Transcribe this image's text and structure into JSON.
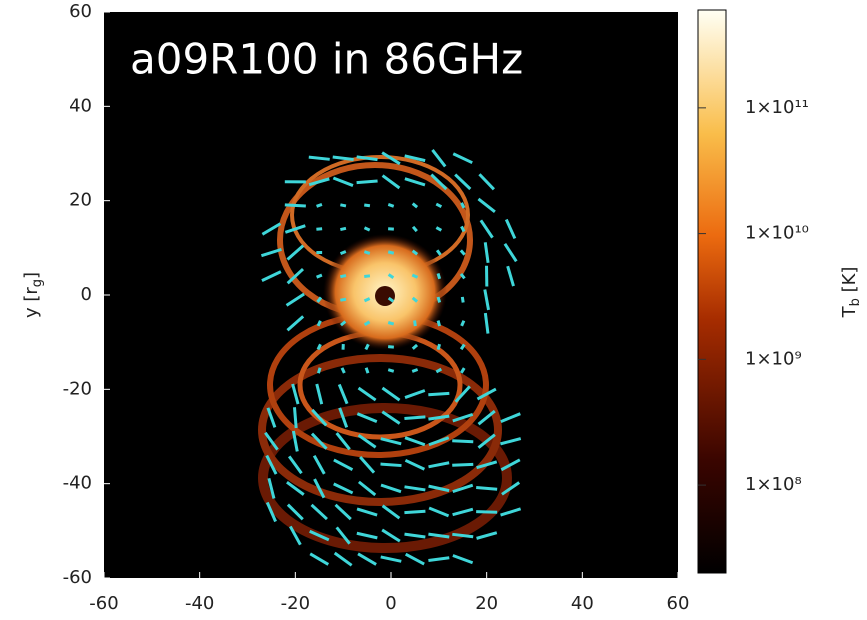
{
  "chart_data": {
    "type": "image",
    "title": "a09R100 in 86GHz",
    "xlim": [
      -60,
      60
    ],
    "ylim": [
      -60,
      60
    ],
    "xticks": [
      -60,
      -40,
      -20,
      0,
      20,
      40,
      60
    ],
    "yticks": [
      -60,
      -40,
      -20,
      0,
      20,
      40,
      60
    ],
    "ylabel": [
      "y [r",
      "g",
      "]"
    ],
    "colorbar": {
      "label": [
        "T",
        "b",
        " [K]"
      ],
      "log": true,
      "lim": [
        20000000,
        600000000000
      ],
      "ticks": [
        {
          "value": 100000000,
          "label": "1×10⁸"
        },
        {
          "value": 1000000000,
          "label": "1×10⁹"
        },
        {
          "value": 10000000000,
          "label": "1×10¹⁰"
        },
        {
          "value": 100000000000,
          "label": "1×10¹¹"
        }
      ]
    }
  }
}
